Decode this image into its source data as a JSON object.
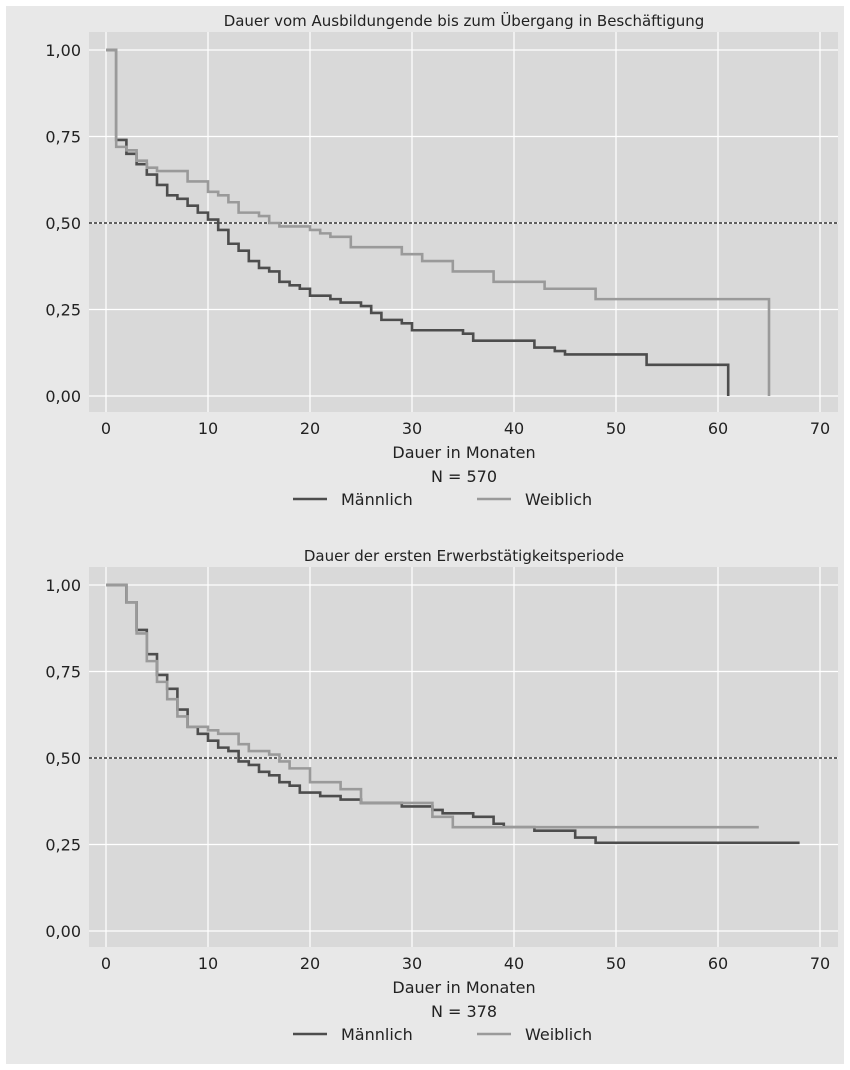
{
  "chart_data": [
    {
      "type": "line",
      "subtype": "step (Kaplan-Meier survival curve)",
      "title": "Dauer vom Ausbildungende bis zum Übergang in Beschäftigung",
      "xlabel": "Dauer in Monaten",
      "note": "N = 570",
      "xlim": [
        0,
        70
      ],
      "ylim": [
        0,
        1
      ],
      "xticks": [
        "0",
        "10",
        "20",
        "30",
        "40",
        "50",
        "60",
        "70"
      ],
      "yticks": [
        "0,00",
        "0,25",
        "0,50",
        "0,75",
        "1,00"
      ],
      "reference_line": 0.5,
      "grid": true,
      "legend_position": "bottom",
      "series": [
        {
          "name": "Männlich",
          "color": "#4d4d4d",
          "points": [
            [
              0,
              1.0
            ],
            [
              1,
              0.74
            ],
            [
              2,
              0.7
            ],
            [
              3,
              0.67
            ],
            [
              4,
              0.64
            ],
            [
              5,
              0.61
            ],
            [
              6,
              0.58
            ],
            [
              7,
              0.57
            ],
            [
              8,
              0.55
            ],
            [
              9,
              0.53
            ],
            [
              10,
              0.51
            ],
            [
              11,
              0.48
            ],
            [
              12,
              0.44
            ],
            [
              13,
              0.42
            ],
            [
              14,
              0.39
            ],
            [
              15,
              0.37
            ],
            [
              16,
              0.36
            ],
            [
              17,
              0.33
            ],
            [
              18,
              0.32
            ],
            [
              19,
              0.31
            ],
            [
              20,
              0.29
            ],
            [
              22,
              0.28
            ],
            [
              23,
              0.27
            ],
            [
              25,
              0.26
            ],
            [
              26,
              0.24
            ],
            [
              27,
              0.22
            ],
            [
              29,
              0.21
            ],
            [
              30,
              0.19
            ],
            [
              35,
              0.18
            ],
            [
              36,
              0.16
            ],
            [
              42,
              0.14
            ],
            [
              44,
              0.13
            ],
            [
              45,
              0.12
            ],
            [
              53,
              0.09
            ],
            [
              61,
              0.09
            ],
            [
              61,
              0.0
            ]
          ]
        },
        {
          "name": "Weiblich",
          "color": "#9a9a9a",
          "points": [
            [
              0,
              1.0
            ],
            [
              1,
              0.72
            ],
            [
              2,
              0.71
            ],
            [
              3,
              0.68
            ],
            [
              4,
              0.66
            ],
            [
              5,
              0.65
            ],
            [
              8,
              0.62
            ],
            [
              10,
              0.59
            ],
            [
              11,
              0.58
            ],
            [
              12,
              0.56
            ],
            [
              13,
              0.53
            ],
            [
              15,
              0.52
            ],
            [
              16,
              0.5
            ],
            [
              17,
              0.49
            ],
            [
              20,
              0.48
            ],
            [
              21,
              0.47
            ],
            [
              22,
              0.46
            ],
            [
              24,
              0.43
            ],
            [
              29,
              0.41
            ],
            [
              31,
              0.39
            ],
            [
              34,
              0.36
            ],
            [
              38,
              0.33
            ],
            [
              43,
              0.31
            ],
            [
              48,
              0.28
            ],
            [
              65,
              0.28
            ],
            [
              65,
              0.0
            ]
          ]
        }
      ]
    },
    {
      "type": "line",
      "subtype": "step (Kaplan-Meier survival curve)",
      "title": "Dauer der ersten Erwerbstätigkeitsperiode",
      "xlabel": "Dauer in Monaten",
      "note": "N = 378",
      "xlim": [
        0,
        70
      ],
      "ylim": [
        0,
        1
      ],
      "xticks": [
        "0",
        "10",
        "20",
        "30",
        "40",
        "50",
        "60",
        "70"
      ],
      "yticks": [
        "0,00",
        "0,25",
        "0,50",
        "0,75",
        "1,00"
      ],
      "reference_line": 0.5,
      "grid": true,
      "legend_position": "bottom",
      "series": [
        {
          "name": "Männlich",
          "color": "#4d4d4d",
          "points": [
            [
              0,
              1.0
            ],
            [
              2,
              0.95
            ],
            [
              3,
              0.87
            ],
            [
              4,
              0.8
            ],
            [
              5,
              0.74
            ],
            [
              6,
              0.7
            ],
            [
              7,
              0.64
            ],
            [
              8,
              0.59
            ],
            [
              9,
              0.57
            ],
            [
              10,
              0.55
            ],
            [
              11,
              0.53
            ],
            [
              12,
              0.52
            ],
            [
              13,
              0.49
            ],
            [
              14,
              0.48
            ],
            [
              15,
              0.46
            ],
            [
              16,
              0.45
            ],
            [
              17,
              0.43
            ],
            [
              18,
              0.42
            ],
            [
              19,
              0.4
            ],
            [
              21,
              0.39
            ],
            [
              23,
              0.38
            ],
            [
              25,
              0.37
            ],
            [
              29,
              0.36
            ],
            [
              32,
              0.35
            ],
            [
              33,
              0.34
            ],
            [
              36,
              0.33
            ],
            [
              38,
              0.31
            ],
            [
              39,
              0.3
            ],
            [
              42,
              0.29
            ],
            [
              46,
              0.27
            ],
            [
              48,
              0.255
            ],
            [
              68,
              0.255
            ]
          ]
        },
        {
          "name": "Weiblich",
          "color": "#9a9a9a",
          "points": [
            [
              0,
              1.0
            ],
            [
              2,
              0.95
            ],
            [
              3,
              0.86
            ],
            [
              4,
              0.78
            ],
            [
              5,
              0.72
            ],
            [
              6,
              0.67
            ],
            [
              7,
              0.62
            ],
            [
              8,
              0.59
            ],
            [
              10,
              0.58
            ],
            [
              11,
              0.57
            ],
            [
              13,
              0.54
            ],
            [
              14,
              0.52
            ],
            [
              16,
              0.51
            ],
            [
              17,
              0.49
            ],
            [
              18,
              0.47
            ],
            [
              20,
              0.43
            ],
            [
              23,
              0.41
            ],
            [
              25,
              0.37
            ],
            [
              32,
              0.33
            ],
            [
              34,
              0.3
            ],
            [
              64,
              0.3
            ]
          ]
        }
      ]
    }
  ]
}
